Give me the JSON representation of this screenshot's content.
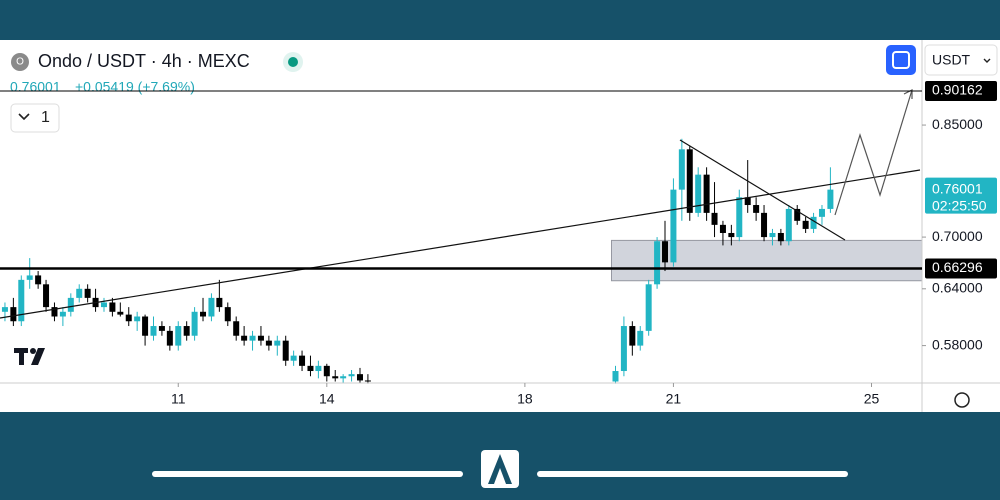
{
  "header": {
    "symbol": "Ondo / USDT · 4h · MEXC",
    "change": "+0.05419 (+7.69%)",
    "interval_count": "1",
    "currency": "USDT"
  },
  "chart_data": {
    "type": "candlestick",
    "log_scale": true,
    "up_color": "#22b5c4",
    "down_color": "#000000",
    "xlim": [
      7.4,
      26.02
    ],
    "xticks": [
      11,
      14,
      18,
      21,
      25
    ],
    "ylim": [
      0.5436,
      0.985
    ],
    "yticks": [
      {
        "value": 0.58,
        "label": "0.58000"
      },
      {
        "value": 0.64,
        "label": "0.64000"
      },
      {
        "value": 0.7,
        "label": "0.70000"
      },
      {
        "value": 0.85,
        "label": "0.85000"
      }
    ],
    "levels": [
      0.90162,
      0.66296
    ],
    "last_price": 0.76001,
    "countdown": "02:25:50",
    "zone": {
      "low": 0.649,
      "high": 0.696
    },
    "x": [
      7.5,
      7.67,
      7.83,
      8.0,
      8.17,
      8.33,
      8.5,
      8.67,
      8.83,
      9.0,
      9.17,
      9.33,
      9.5,
      9.67,
      9.83,
      10.0,
      10.17,
      10.33,
      10.5,
      10.67,
      10.83,
      11.0,
      11.17,
      11.33,
      11.5,
      11.67,
      11.83,
      12.0,
      12.17,
      12.33,
      12.5,
      12.67,
      12.83,
      13.0,
      13.17,
      13.33,
      13.5,
      13.67,
      13.83,
      14.0,
      14.17,
      14.33,
      14.5,
      14.67,
      14.83,
      19.83,
      20.0,
      20.17,
      20.33,
      20.5,
      20.67,
      20.83,
      21.0,
      21.17,
      21.33,
      21.5,
      21.67,
      21.83,
      22.0,
      22.17,
      22.33,
      22.5,
      22.67,
      22.83,
      23.0,
      23.17,
      23.33,
      23.5,
      23.67,
      23.83,
      24.0,
      24.17
    ],
    "open": [
      0.615,
      0.62,
      0.605,
      0.65,
      0.655,
      0.645,
      0.62,
      0.61,
      0.615,
      0.63,
      0.64,
      0.63,
      0.62,
      0.625,
      0.615,
      0.612,
      0.605,
      0.61,
      0.59,
      0.6,
      0.595,
      0.58,
      0.6,
      0.59,
      0.615,
      0.61,
      0.63,
      0.62,
      0.605,
      0.59,
      0.585,
      0.59,
      0.585,
      0.58,
      0.585,
      0.565,
      0.57,
      0.56,
      0.555,
      0.56,
      0.55,
      0.548,
      0.55,
      0.552,
      0.546,
      0.545,
      0.555,
      0.6,
      0.58,
      0.595,
      0.645,
      0.695,
      0.67,
      0.76,
      0.815,
      0.73,
      0.78,
      0.73,
      0.715,
      0.705,
      0.7,
      0.75,
      0.74,
      0.73,
      0.7,
      0.705,
      0.695,
      0.735,
      0.72,
      0.71,
      0.725,
      0.735
    ],
    "high": [
      0.625,
      0.63,
      0.655,
      0.675,
      0.66,
      0.65,
      0.625,
      0.62,
      0.635,
      0.645,
      0.645,
      0.64,
      0.63,
      0.63,
      0.625,
      0.62,
      0.615,
      0.612,
      0.61,
      0.605,
      0.6,
      0.605,
      0.605,
      0.62,
      0.63,
      0.635,
      0.65,
      0.625,
      0.61,
      0.6,
      0.595,
      0.6,
      0.59,
      0.59,
      0.59,
      0.575,
      0.575,
      0.57,
      0.565,
      0.562,
      0.556,
      0.552,
      0.556,
      0.558,
      0.552,
      0.56,
      0.61,
      0.605,
      0.6,
      0.65,
      0.7,
      0.72,
      0.775,
      0.83,
      0.82,
      0.79,
      0.79,
      0.77,
      0.72,
      0.715,
      0.76,
      0.8,
      0.75,
      0.74,
      0.71,
      0.71,
      0.74,
      0.74,
      0.725,
      0.73,
      0.74,
      0.79
    ],
    "low": [
      0.605,
      0.6,
      0.6,
      0.64,
      0.64,
      0.615,
      0.605,
      0.6,
      0.61,
      0.625,
      0.625,
      0.615,
      0.615,
      0.61,
      0.61,
      0.6,
      0.595,
      0.58,
      0.585,
      0.59,
      0.575,
      0.575,
      0.585,
      0.585,
      0.605,
      0.605,
      0.615,
      0.6,
      0.585,
      0.58,
      0.575,
      0.58,
      0.575,
      0.57,
      0.56,
      0.56,
      0.555,
      0.55,
      0.548,
      0.545,
      0.545,
      0.544,
      0.545,
      0.544,
      0.543,
      0.543,
      0.55,
      0.57,
      0.575,
      0.59,
      0.64,
      0.66,
      0.665,
      0.72,
      0.72,
      0.725,
      0.72,
      0.7,
      0.69,
      0.69,
      0.695,
      0.73,
      0.72,
      0.695,
      0.69,
      0.69,
      0.69,
      0.715,
      0.705,
      0.705,
      0.715,
      0.73
    ],
    "close": [
      0.62,
      0.605,
      0.65,
      0.655,
      0.645,
      0.62,
      0.61,
      0.615,
      0.63,
      0.64,
      0.63,
      0.62,
      0.625,
      0.615,
      0.612,
      0.605,
      0.61,
      0.59,
      0.6,
      0.595,
      0.58,
      0.6,
      0.59,
      0.615,
      0.61,
      0.63,
      0.62,
      0.605,
      0.59,
      0.585,
      0.59,
      0.585,
      0.58,
      0.585,
      0.565,
      0.57,
      0.56,
      0.555,
      0.56,
      0.55,
      0.548,
      0.55,
      0.552,
      0.546,
      0.545,
      0.555,
      0.6,
      0.58,
      0.595,
      0.645,
      0.695,
      0.67,
      0.76,
      0.815,
      0.73,
      0.78,
      0.73,
      0.715,
      0.705,
      0.7,
      0.75,
      0.74,
      0.73,
      0.7,
      0.705,
      0.695,
      0.735,
      0.72,
      0.71,
      0.725,
      0.735,
      0.76001
    ]
  }
}
